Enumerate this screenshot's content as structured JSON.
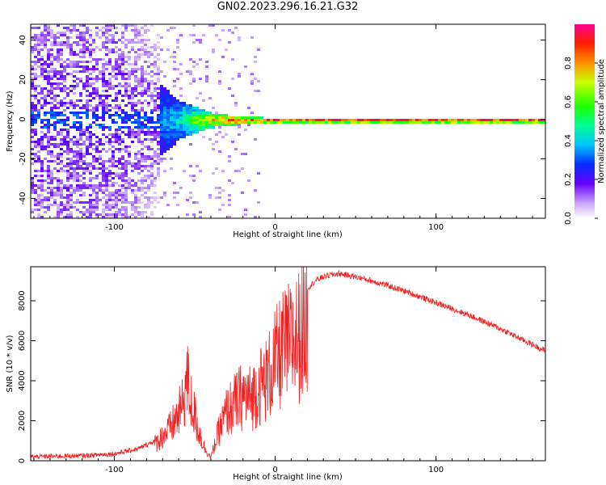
{
  "title": "GN02.2023.296.16.21.G32",
  "chart_data": [
    {
      "type": "heatmap",
      "xlabel": "Height of straight line (km)",
      "ylabel": "Frequency (Hz)",
      "xlim": [
        -152,
        168
      ],
      "ylim": [
        -50,
        48
      ],
      "xticks": [
        -100,
        0,
        100
      ],
      "yticks": [
        -40,
        -20,
        0,
        20,
        40
      ],
      "colorbar": {
        "label": "Normalized spectral amplitude",
        "range": [
          0,
          1
        ],
        "ticks": [
          "0.0",
          "0.2",
          "0.4",
          "0.6",
          "0.8"
        ]
      },
      "description_points": [
        {
          "x": -140,
          "freq_spread": 48,
          "amplitude": 0.15
        },
        {
          "x": -100,
          "freq_spread": 40,
          "amplitude": 0.2
        },
        {
          "x": -80,
          "freq_spread": 20,
          "amplitude": 0.3
        },
        {
          "x": -60,
          "freq_spread": 8,
          "amplitude": 0.45
        },
        {
          "x": -40,
          "freq_spread": 3,
          "amplitude": 0.85
        },
        {
          "x": -20,
          "freq_spread": 1.5,
          "amplitude": 0.95
        },
        {
          "x": 0,
          "freq_spread": 1,
          "amplitude": 1.0
        },
        {
          "x": 168,
          "freq_spread": 1,
          "amplitude": 1.0
        }
      ]
    },
    {
      "type": "line",
      "xlabel": "Height of straight line (km)",
      "ylabel": "SNR (10 * v/v)",
      "xlim": [
        -152,
        168
      ],
      "ylim": [
        0,
        9700
      ],
      "xticks": [
        -100,
        0,
        100
      ],
      "yticks": [
        0,
        2000,
        4000,
        6000,
        8000
      ],
      "color": "#ee2222",
      "envelope": {
        "x": [
          -152,
          -120,
          -100,
          -85,
          -75,
          -65,
          -58,
          -55,
          -52,
          -48,
          -44,
          -40,
          -35,
          -30,
          -25,
          -20,
          -15,
          -10,
          -5,
          0,
          5,
          10,
          15,
          20,
          25,
          30,
          35,
          40,
          50,
          60,
          80,
          100,
          120,
          140,
          160,
          168
        ],
        "y": [
          200,
          250,
          350,
          600,
          1000,
          2000,
          3200,
          5000,
          3500,
          2000,
          800,
          200,
          1800,
          3000,
          3500,
          4000,
          3800,
          4500,
          5000,
          6000,
          6800,
          7200,
          7600,
          8600,
          9000,
          9200,
          9300,
          9350,
          9200,
          9000,
          8500,
          7900,
          7300,
          6600,
          5800,
          5500
        ]
      }
    }
  ]
}
